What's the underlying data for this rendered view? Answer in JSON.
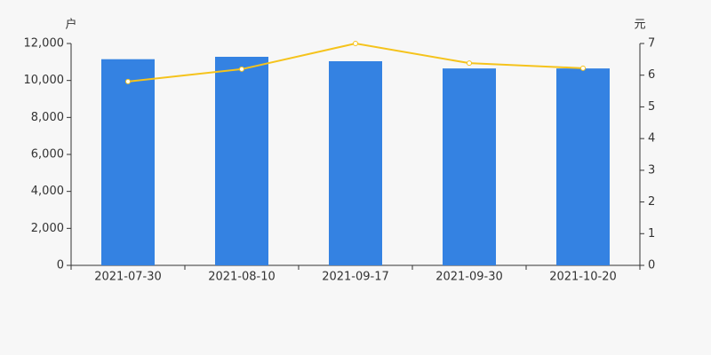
{
  "chart_data": {
    "type": "bar",
    "categories": [
      "2021-07-30",
      "2021-08-10",
      "2021-09-17",
      "2021-09-30",
      "2021-10-20"
    ],
    "y_unit": "户",
    "y2_unit": "元",
    "series": [
      {
        "type": "bar",
        "color": "#3482e2",
        "values": [
          11150,
          11280,
          11040,
          10650,
          10650
        ]
      },
      {
        "type": "line",
        "axis": "y2",
        "color": "#f5c31c",
        "values": [
          5.8,
          6.19,
          7.0,
          6.38,
          6.22
        ]
      }
    ],
    "ylim": [
      0,
      12000
    ],
    "yticks": [
      0,
      {
        "value": 2000,
        "label": "2,000"
      },
      {
        "value": 4000,
        "label": "4,000"
      },
      {
        "value": 6000,
        "label": "6,000"
      },
      {
        "value": 8000,
        "label": "8,000"
      },
      {
        "value": 10000,
        "label": "10,000"
      },
      {
        "value": 12000,
        "label": "12,000"
      }
    ],
    "y2lim": [
      0,
      7
    ],
    "y2ticks": [
      0,
      1,
      2,
      3,
      4,
      5,
      6,
      7
    ]
  }
}
